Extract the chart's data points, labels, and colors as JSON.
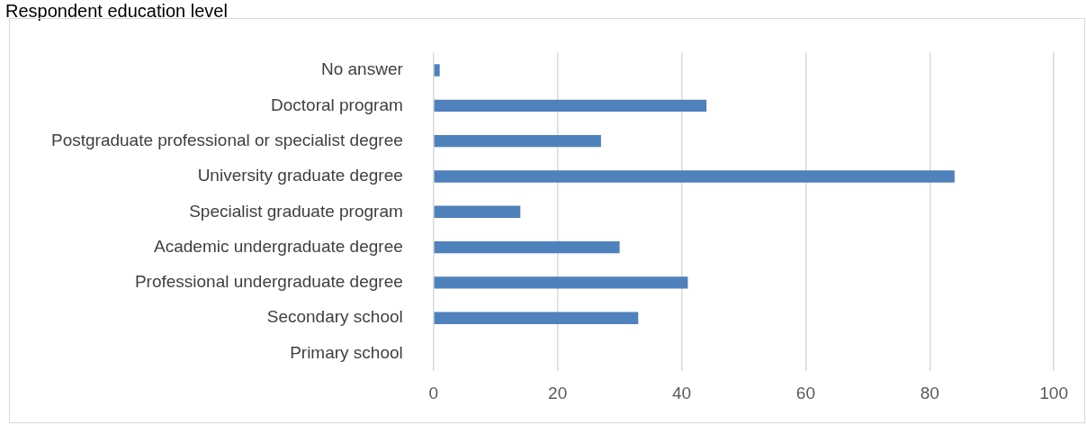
{
  "chart_data": {
    "type": "bar",
    "orientation": "horizontal",
    "title": "Respondent education level",
    "categories": [
      "No answer",
      "Doctoral program",
      "Postgraduate professional or specialist degree",
      "University graduate degree",
      "Specialist graduate program",
      "Academic undergraduate degree",
      "Professional undergraduate degree",
      "Secondary school",
      "Primary school"
    ],
    "values": [
      1,
      44,
      27,
      84,
      14,
      30,
      41,
      33,
      0
    ],
    "color": "#4f81bd",
    "xlim": [
      0,
      100
    ],
    "xticks": [
      0,
      20,
      40,
      60,
      80,
      100
    ],
    "grid": "x",
    "legend": false
  }
}
